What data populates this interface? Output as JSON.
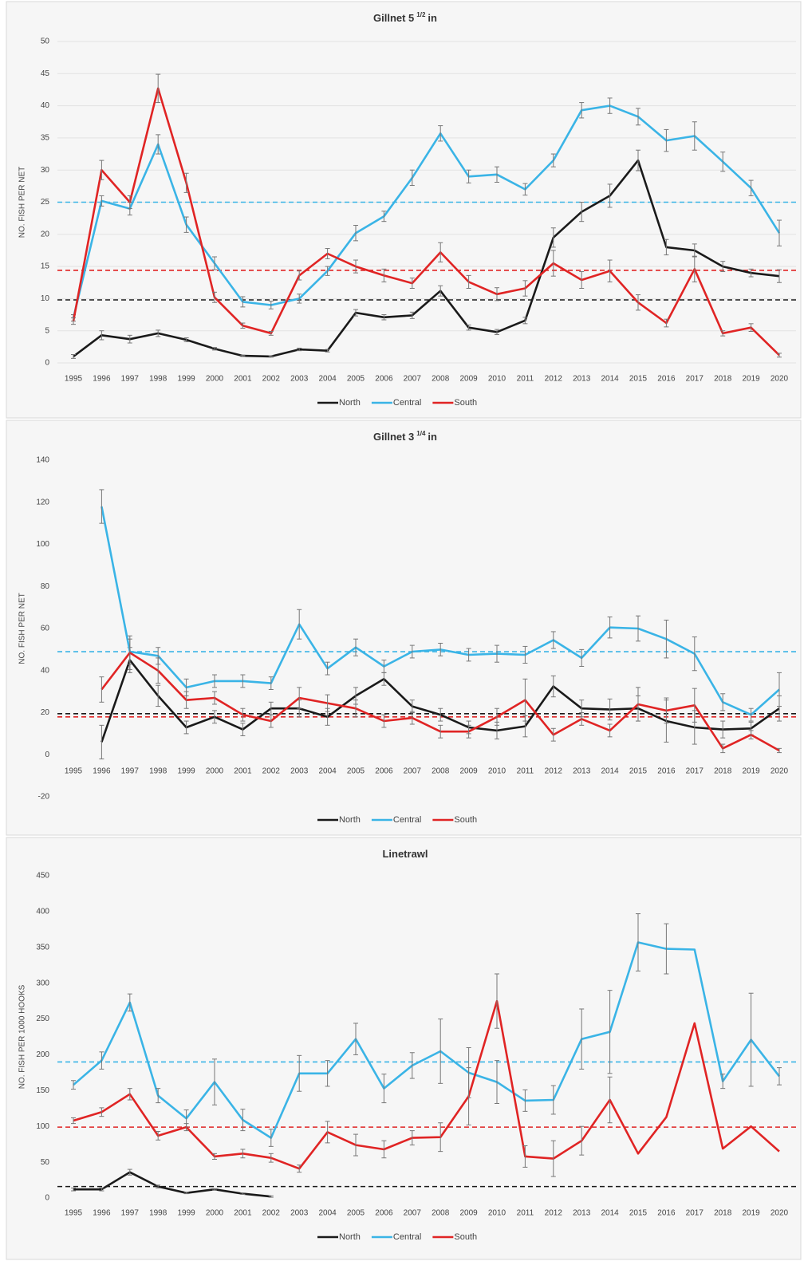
{
  "chart_data": [
    {
      "type": "line",
      "title": "Gillnet 5",
      "title_superscript": "1/2",
      "title_unit": "in",
      "y_label": "NO. FISH PER NET",
      "categories": [
        "1995",
        "1996",
        "1997",
        "1998",
        "1999",
        "2000",
        "2001",
        "2002",
        "2003",
        "2004",
        "2005",
        "2006",
        "2007",
        "2008",
        "2009",
        "2010",
        "2011",
        "2012",
        "2013",
        "2014",
        "2015",
        "2016",
        "2017",
        "2018",
        "2019",
        "2020"
      ],
      "ylim": [
        0,
        50
      ],
      "yticks": [
        0,
        5,
        10,
        15,
        20,
        25,
        30,
        35,
        40,
        45,
        50
      ],
      "grid": true,
      "legend": "bottom",
      "series": [
        {
          "name": "North",
          "color": "#1a1a1a",
          "mean": 9.8,
          "values": [
            1,
            4.3,
            3.7,
            4.6,
            3.6,
            2.2,
            1.1,
            1.0,
            2.1,
            1.9,
            7.8,
            7.1,
            7.4,
            11.2,
            5.5,
            4.8,
            6.6,
            19.5,
            23.5,
            26,
            31.5,
            18,
            17.5,
            15,
            14,
            13.5
          ],
          "errors": [
            0.3,
            0.7,
            0.6,
            0.5,
            0.3,
            0.2,
            0.1,
            0.1,
            0.2,
            0.2,
            0.5,
            0.4,
            0.5,
            0.8,
            0.4,
            0.4,
            0.5,
            1.5,
            1.5,
            1.8,
            1.6,
            1.2,
            1,
            0.8,
            0.6,
            1
          ]
        },
        {
          "name": "Central",
          "color": "#3ab4e6",
          "mean": 25,
          "values": [
            7,
            25.2,
            24,
            34,
            21.5,
            15.5,
            9.5,
            9,
            10,
            14.3,
            20.2,
            22.8,
            28.8,
            35.7,
            29,
            29.3,
            27,
            31.5,
            39.3,
            40,
            38.3,
            34.6,
            35.3,
            31.3,
            27.2,
            20.2
          ],
          "errors": [
            0.5,
            0.8,
            1,
            1.5,
            1.2,
            1,
            0.8,
            0.6,
            0.7,
            0.7,
            1.2,
            0.8,
            1.2,
            1.2,
            1,
            1.2,
            0.9,
            1,
            1.2,
            1.2,
            1.3,
            1.7,
            2.2,
            1.5,
            1.2,
            2
          ]
        },
        {
          "name": "South",
          "color": "#e02424",
          "mean": 14.4,
          "values": [
            6.5,
            30,
            25,
            42.7,
            28,
            10.2,
            5.8,
            4.6,
            13.6,
            17,
            15,
            13.6,
            12.4,
            17.2,
            12.6,
            10.7,
            11.6,
            15.5,
            12.9,
            14.3,
            9.4,
            6.2,
            14.6,
            4.6,
            5.5,
            1.2
          ],
          "errors": [
            0.5,
            1.5,
            1,
            2.2,
            1.5,
            0.8,
            0.4,
            0.3,
            0.7,
            0.8,
            1,
            1,
            0.8,
            1.5,
            1,
            1,
            1.2,
            2,
            1.3,
            1.7,
            1.2,
            0.6,
            2,
            0.4,
            0.6,
            0.3
          ]
        }
      ]
    },
    {
      "type": "line",
      "title": "Gillnet 3",
      "title_superscript": "1/4",
      "title_unit": "in",
      "y_label": "NO. FISH PER NET",
      "categories": [
        "1995",
        "1996",
        "1997",
        "1998",
        "1999",
        "2000",
        "2001",
        "2002",
        "2003",
        "2004",
        "2005",
        "2006",
        "2007",
        "2008",
        "2009",
        "2010",
        "2011",
        "2012",
        "2013",
        "2014",
        "2015",
        "2016",
        "2017",
        "2018",
        "2019",
        "2020"
      ],
      "ylim": [
        -20,
        140
      ],
      "yticks": [
        -20,
        0,
        20,
        40,
        60,
        80,
        100,
        120,
        140
      ],
      "grid": false,
      "legend": "bottom",
      "series": [
        {
          "name": "North",
          "color": "#1a1a1a",
          "mean": 19.5,
          "values": [
            null,
            6,
            45,
            28,
            13,
            18,
            12,
            22,
            22,
            18,
            28,
            36,
            23,
            19,
            13,
            11.5,
            13.5,
            32.5,
            22,
            21.5,
            22,
            16,
            13,
            12,
            12.5,
            22
          ],
          "errors": [
            null,
            8,
            6,
            5,
            3,
            3,
            3,
            3,
            4,
            4,
            4,
            3,
            3,
            3,
            3,
            4,
            5,
            5,
            4,
            5,
            6,
            10,
            8,
            4,
            3,
            6
          ]
        },
        {
          "name": "Central",
          "color": "#3ab4e6",
          "mean": 49,
          "values": [
            null,
            118,
            49,
            47,
            32,
            35,
            35,
            34,
            62,
            41,
            51,
            42,
            49,
            50,
            47.5,
            48,
            47.5,
            54.5,
            46,
            60.5,
            60,
            55,
            48,
            25,
            19,
            31
          ],
          "errors": [
            null,
            8,
            6,
            4,
            4,
            3,
            3,
            3,
            7,
            3,
            4,
            3,
            3,
            3,
            3,
            4,
            4,
            4,
            4,
            5,
            6,
            9,
            8,
            4,
            3,
            8
          ]
        },
        {
          "name": "South",
          "color": "#e02424",
          "mean": 18,
          "values": [
            null,
            31,
            48.5,
            40,
            26,
            27,
            19,
            16,
            27,
            24.5,
            22,
            16,
            17.5,
            11,
            11,
            18,
            26,
            9.5,
            17,
            11.5,
            24,
            21,
            23.5,
            3,
            9.5,
            2
          ],
          "errors": [
            null,
            6,
            8,
            6,
            4,
            3,
            3,
            3,
            5,
            4,
            4,
            3,
            3,
            3,
            3,
            4,
            10,
            3,
            3,
            3,
            8,
            6,
            8,
            2,
            2,
            1
          ]
        }
      ]
    },
    {
      "type": "line",
      "title": "Linetrawl",
      "y_label": "NO. FISH PER 1000 HOOKS",
      "categories": [
        "1995",
        "1996",
        "1997",
        "1998",
        "1999",
        "2000",
        "2001",
        "2002",
        "2003",
        "2004",
        "2005",
        "2006",
        "2007",
        "2008",
        "2009",
        "2010",
        "2011",
        "2012",
        "2013",
        "2014",
        "2015",
        "2016",
        "2017",
        "2018",
        "2019",
        "2020"
      ],
      "ylim": [
        0,
        450
      ],
      "yticks": [
        0,
        50,
        100,
        150,
        200,
        250,
        300,
        350,
        400,
        450
      ],
      "grid": false,
      "legend": "bottom",
      "series": [
        {
          "name": "North",
          "color": "#1a1a1a",
          "mean": 16,
          "values": [
            12,
            12,
            36,
            16,
            7,
            12,
            6,
            2,
            null,
            null,
            null,
            null,
            null,
            null,
            null,
            null,
            null,
            null,
            null,
            null,
            null,
            null,
            null,
            null,
            null,
            null
          ],
          "errors": [
            2,
            2,
            4,
            2,
            1,
            1,
            1,
            1,
            null,
            null,
            null,
            null,
            null,
            null,
            null,
            null,
            null,
            null,
            null,
            null,
            null,
            null,
            null,
            null,
            null,
            null
          ]
        },
        {
          "name": "Central",
          "color": "#3ab4e6",
          "mean": 190,
          "values": [
            158,
            192,
            273,
            143,
            111,
            162,
            109,
            84,
            174,
            174,
            222,
            153,
            185,
            205,
            175,
            162,
            136,
            137,
            222,
            232,
            357,
            348,
            347,
            163,
            221,
            170
          ],
          "errors": [
            6,
            12,
            12,
            10,
            12,
            32,
            15,
            12,
            25,
            18,
            22,
            20,
            18,
            45,
            35,
            30,
            15,
            20,
            42,
            58,
            40,
            35,
            null,
            10,
            65,
            12
          ]
        },
        {
          "name": "South",
          "color": "#e02424",
          "mean": 99,
          "values": [
            108,
            120,
            145,
            87,
            99,
            58,
            62,
            56,
            41,
            92,
            74,
            68,
            84,
            85,
            142,
            275,
            58,
            55,
            80,
            137,
            62,
            113,
            244,
            69,
            100,
            65
          ],
          "errors": [
            4,
            6,
            8,
            6,
            5,
            4,
            6,
            6,
            5,
            15,
            15,
            12,
            10,
            20,
            40,
            38,
            15,
            25,
            20,
            32,
            null,
            null,
            null,
            null,
            null,
            null
          ]
        }
      ]
    }
  ]
}
